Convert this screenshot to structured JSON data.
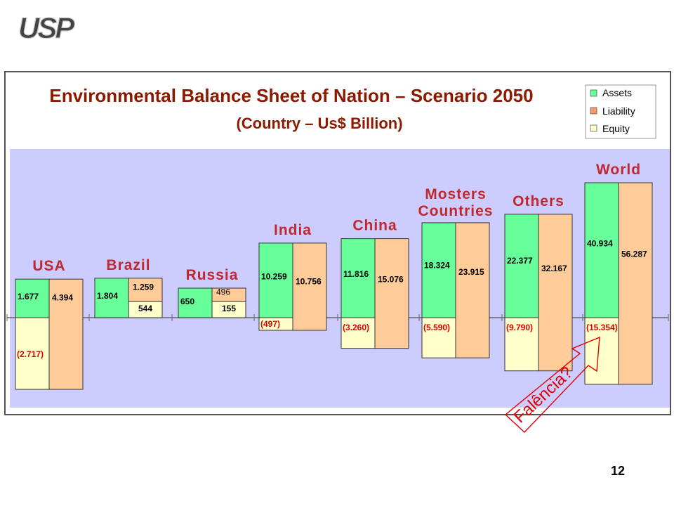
{
  "logo_text": "USP",
  "page_number": "12",
  "chart_data": {
    "type": "bar",
    "title": "Environmental Balance Sheet of Nation – Scenario 2050",
    "subtitle": "(Country – Us$ Billion)",
    "legend": [
      "Assets",
      "Liability",
      "Equity"
    ],
    "legend_position": "top-right",
    "colors": {
      "assets": "#66ff99",
      "liability": "#ffcc99",
      "equity": "#ffffcc",
      "background": "#ccccff",
      "title": "#8b1a00",
      "group_label": "#c0282d",
      "negative_text": "#e00000"
    },
    "groups": [
      {
        "name": "USA",
        "assets": 1677,
        "liability": 4394,
        "equity": -2717,
        "assets_label": "1.677",
        "liability_label": "4.394",
        "equity_label": "(2.717)"
      },
      {
        "name": "Brazil",
        "assets": 1804,
        "liability": 1259,
        "equity": 544,
        "assets_label": "1.804",
        "liability_label": "1.259",
        "equity_label": "544"
      },
      {
        "name": "Russia",
        "assets": 650,
        "liability": 496,
        "equity": 155,
        "assets_label": "650",
        "liability_label": "496",
        "equity_label": "155"
      },
      {
        "name": "India",
        "assets": 10259,
        "liability": 10756,
        "equity": -497,
        "assets_label": "10.259",
        "liability_label": "10.756",
        "equity_label": "(497)"
      },
      {
        "name": "China",
        "assets": 11816,
        "liability": 15076,
        "equity": -3260,
        "assets_label": "11.816",
        "liability_label": "15.076",
        "equity_label": "(3.260)"
      },
      {
        "name": "Mosters Countries",
        "assets": 18324,
        "liability": 23915,
        "equity": -5590,
        "assets_label": "18.324",
        "liability_label": "23.915",
        "equity_label": "(5.590)"
      },
      {
        "name": "Others",
        "assets": 22377,
        "liability": 32167,
        "equity": -9790,
        "assets_label": "22.377",
        "liability_label": "32.167",
        "equity_label": "(9.790)"
      },
      {
        "name": "World",
        "assets": 40934,
        "liability": 56287,
        "equity": -15354,
        "assets_label": "40.934",
        "liability_label": "56.287",
        "equity_label": "(15.354)"
      }
    ],
    "annotation": "Falência?"
  }
}
